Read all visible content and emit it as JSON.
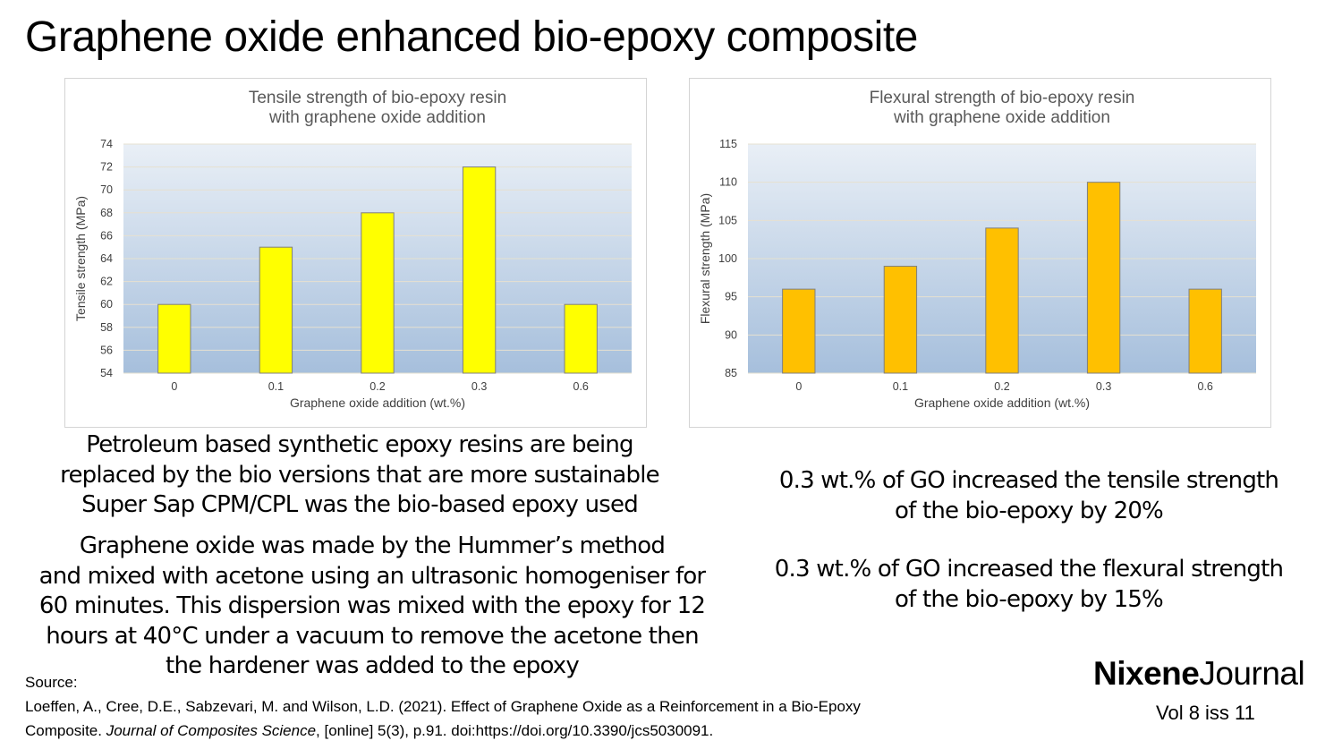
{
  "slide": {
    "title": "Graphene oxide enhanced bio-epoxy composite"
  },
  "chart_data": [
    {
      "type": "bar",
      "title_lines": [
        "Tensile strength of bio-epoxy resin",
        "with graphene oxide addition"
      ],
      "xlabel": "Graphene oxide addition (wt.%)",
      "ylabel": "Tensile strength (MPa)",
      "categories": [
        "0",
        "0.1",
        "0.2",
        "0.3",
        "0.6"
      ],
      "values": [
        60,
        65,
        68,
        72,
        60
      ],
      "ylim": [
        54,
        74
      ],
      "yticks": [
        54,
        56,
        58,
        60,
        62,
        64,
        66,
        68,
        70,
        72,
        74
      ],
      "bar_color": "#ffff00",
      "grid": true,
      "legend": "none"
    },
    {
      "type": "bar",
      "title_lines": [
        "Flexural strength of bio-epoxy resin",
        "with graphene oxide addition"
      ],
      "xlabel": "Graphene oxide addition (wt.%)",
      "ylabel": "Flexural strength (MPa)",
      "categories": [
        "0",
        "0.1",
        "0.2",
        "0.3",
        "0.6"
      ],
      "values": [
        96,
        99,
        104,
        110,
        96
      ],
      "ylim": [
        85,
        115
      ],
      "yticks": [
        85,
        90,
        95,
        100,
        105,
        110,
        115
      ],
      "bar_color": "#ffc000",
      "grid": true,
      "legend": "none"
    }
  ],
  "text": {
    "intro_lines": [
      "Petroleum based synthetic epoxy resins are being",
      "replaced by the bio versions that are more sustainable",
      "Super Sap CPM/CPL was the bio-based epoxy used"
    ],
    "method_lines": [
      "Graphene oxide was made by the Hummer’s method",
      "and mixed with acetone using an ultrasonic homogeniser for",
      "60 minutes.  This dispersion was mixed with the epoxy for 12",
      "hours at 40°C under a vacuum to remove the acetone then",
      "the hardener was added to the epoxy"
    ],
    "result_tensile_lines": [
      "0.3 wt.% of GO increased the tensile strength",
      "of the bio-epoxy by 20%"
    ],
    "result_flexural_lines": [
      "0.3 wt.% of GO increased the flexural strength",
      "of the bio-epoxy by 15%"
    ]
  },
  "source": {
    "label": "Source:",
    "line1": "Loeffen, A., Cree, D.E., Sabzevari, M. and Wilson, L.D. (2021). Effect of Graphene Oxide as a Reinforcement in a Bio-Epoxy",
    "line2_prefix": "Composite. ",
    "line2_journal": "Journal of Composites Science",
    "line2_suffix": ", [online] 5(3), p.91. doi:https://doi.org/10.3390/jcs5030091."
  },
  "journal": {
    "brand": "Nixene",
    "suffix": "Journal",
    "issue": "Vol 8  iss 11"
  },
  "colors": {
    "plot_top": "#e9eff6",
    "plot_bottom": "#a6bfdc",
    "gridline": "#e6e0d0",
    "bar_stroke": "#7f7f7f"
  }
}
